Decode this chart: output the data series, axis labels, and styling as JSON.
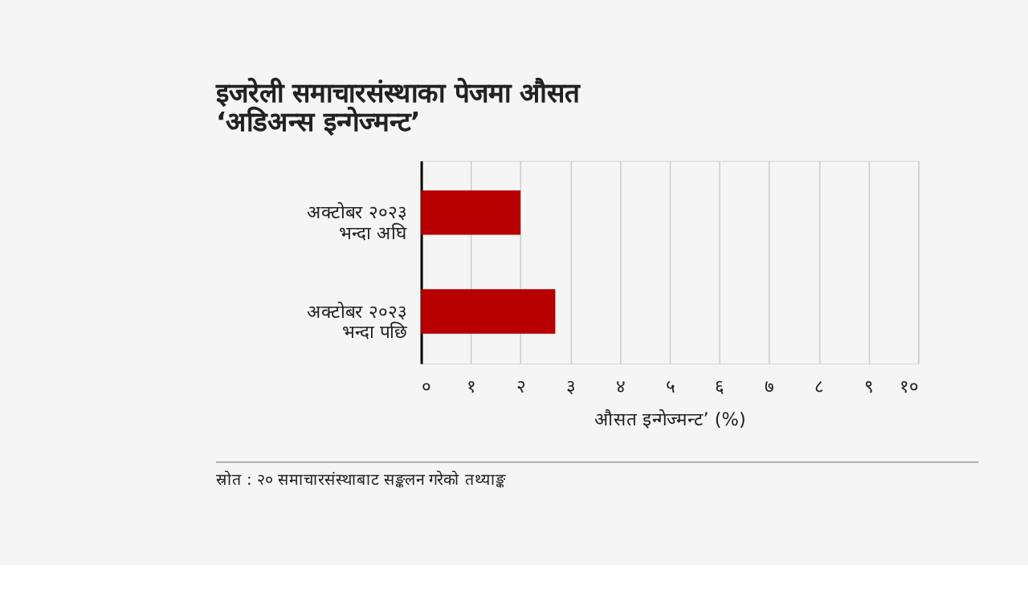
{
  "chart_data": {
    "type": "bar",
    "orientation": "horizontal",
    "title": "इजरेली समाचारसंस्थाका पेजमा औसत\n‘अडिअन्स इन्गेज्मन्ट’",
    "categories": [
      "अक्टोबर २०२३\nभन्दा अघि",
      "अक्टोबर २०२३\nभन्दा पछि"
    ],
    "values": [
      2.0,
      2.7
    ],
    "color": "#b80000",
    "xlabel": "औसत इन्गेज्मन्ट’ (%)",
    "xlim": [
      0,
      10
    ],
    "xticks": [
      {
        "value": 0,
        "label": "०"
      },
      {
        "value": 1,
        "label": "१"
      },
      {
        "value": 2,
        "label": "२"
      },
      {
        "value": 3,
        "label": "३"
      },
      {
        "value": 4,
        "label": "४"
      },
      {
        "value": 5,
        "label": "५"
      },
      {
        "value": 6,
        "label": "६"
      },
      {
        "value": 7,
        "label": "७"
      },
      {
        "value": 8,
        "label": "८"
      },
      {
        "value": 9,
        "label": "९"
      },
      {
        "value": 10,
        "label": "१०"
      }
    ],
    "grid": "x",
    "annotations": [
      "स्रोत : २० समाचारसंस्थाबाट सङ्कलन गरेको तथ्याङ्क"
    ]
  }
}
